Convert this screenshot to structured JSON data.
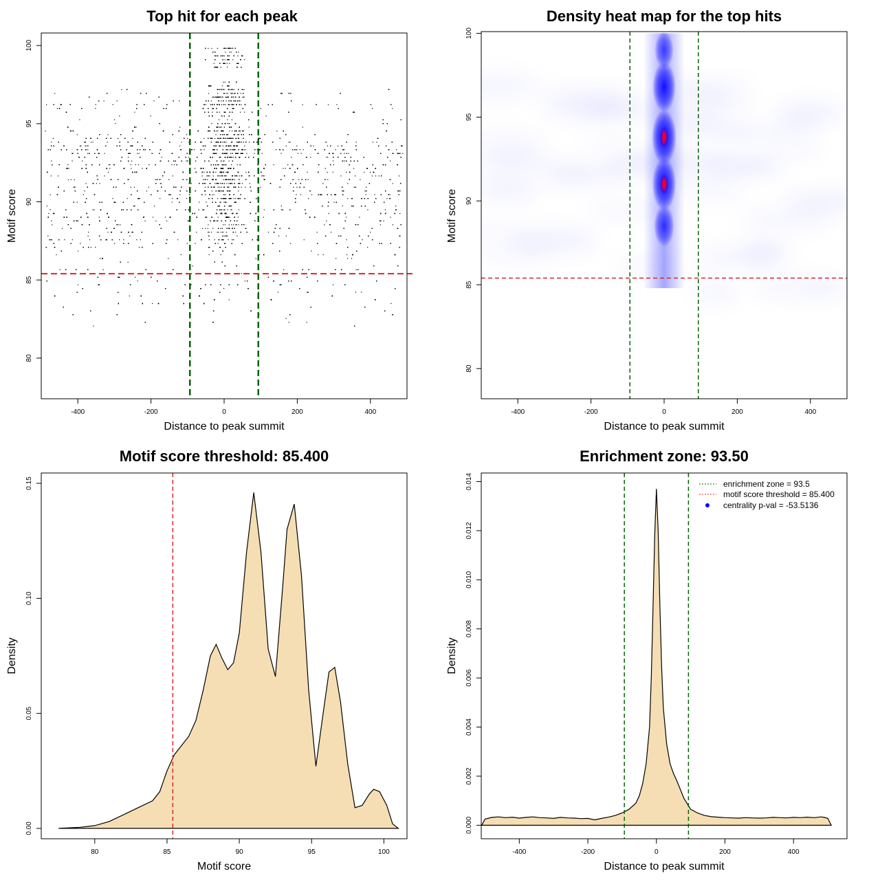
{
  "chart_data": [
    {
      "type": "scatter",
      "title": "Top hit for each peak",
      "xlabel": "Distance to peak summit",
      "ylabel": "Motif score",
      "xlim": [
        -500,
        500
      ],
      "ylim": [
        77.4,
        100.8
      ],
      "xticks": [
        -400,
        -200,
        0,
        200,
        400
      ],
      "yticks": [
        80,
        85,
        90,
        95,
        100
      ],
      "xtick_labels": [
        "-400",
        "-200",
        "0",
        "200",
        "400"
      ],
      "ytick_labels": [
        "80",
        "85",
        "90",
        "95",
        "100"
      ],
      "vlines": [
        -93.5,
        93.5
      ],
      "hline": 85.4,
      "vline_color": "#006400",
      "hline_color": "#d62728",
      "point_color": "#000000",
      "approx_points": 12000,
      "score_range": [
        77.8,
        100
      ]
    },
    {
      "type": "heatmap",
      "title": "Density heat map for the top hits",
      "xlabel": "Distance to peak summit",
      "ylabel": "Motif score",
      "xlim": [
        -500,
        500
      ],
      "ylim": [
        78.2,
        100.1
      ],
      "xticks": [
        -400,
        -200,
        0,
        200,
        400
      ],
      "yticks": [
        80,
        85,
        90,
        95,
        100
      ],
      "xtick_labels": [
        "-400",
        "-200",
        "0",
        "200",
        "400"
      ],
      "ytick_labels": [
        "80",
        "85",
        "90",
        "95",
        "100"
      ],
      "vlines": [
        -93.5,
        93.5
      ],
      "hline": 85.4,
      "hotspots": [
        {
          "x": 0,
          "y": 93.8,
          "intensity": 1.0
        },
        {
          "x": 0,
          "y": 91.0,
          "intensity": 0.92
        },
        {
          "x": 0,
          "y": 96.8,
          "intensity": 0.85
        },
        {
          "x": 0,
          "y": 99.0,
          "intensity": 0.4
        },
        {
          "x": 0,
          "y": 88.5,
          "intensity": 0.55
        }
      ],
      "colors": [
        "#ffffff",
        "#0000ff",
        "#ff0000"
      ]
    },
    {
      "type": "area",
      "title": "Motif score threshold: 85.400",
      "xlabel": "Motif score",
      "ylabel": "Density",
      "xlim": [
        76.3,
        101.6
      ],
      "ylim": [
        -0.0045,
        0.1545
      ],
      "xticks": [
        80,
        85,
        90,
        95,
        100
      ],
      "yticks": [
        0.0,
        0.05,
        0.1,
        0.15
      ],
      "xtick_labels": [
        "80",
        "85",
        "90",
        "95",
        "100"
      ],
      "ytick_labels": [
        "0.00",
        "0.05",
        "0.10",
        "0.15"
      ],
      "vline": 85.4,
      "fill_color": "#f5deb3",
      "x": [
        77.5,
        79.0,
        80.0,
        81.0,
        82.0,
        83.0,
        84.0,
        84.5,
        85.0,
        85.5,
        86.0,
        86.5,
        87.0,
        87.5,
        88.0,
        88.4,
        88.8,
        89.2,
        89.6,
        90.0,
        90.5,
        91.0,
        91.5,
        92.0,
        92.5,
        93.0,
        93.3,
        93.8,
        94.3,
        94.8,
        95.3,
        95.8,
        96.2,
        96.6,
        97.0,
        97.5,
        98.0,
        98.5,
        99.0,
        99.3,
        99.7,
        100.2,
        100.6,
        101.0
      ],
      "values": [
        0.0,
        0.0005,
        0.0012,
        0.003,
        0.006,
        0.009,
        0.012,
        0.016,
        0.025,
        0.032,
        0.036,
        0.04,
        0.047,
        0.06,
        0.075,
        0.08,
        0.074,
        0.069,
        0.072,
        0.085,
        0.12,
        0.146,
        0.12,
        0.078,
        0.066,
        0.105,
        0.13,
        0.141,
        0.11,
        0.06,
        0.027,
        0.05,
        0.068,
        0.07,
        0.055,
        0.028,
        0.009,
        0.01,
        0.015,
        0.017,
        0.016,
        0.01,
        0.002,
        0.0
      ]
    },
    {
      "type": "area",
      "title": "Enrichment zone: 93.50",
      "xlabel": "Distance to peak summit",
      "ylabel": "Density",
      "xlim": [
        -511,
        556
      ],
      "ylim": [
        -0.00055,
        0.01435
      ],
      "xticks": [
        -400,
        -200,
        0,
        200,
        400
      ],
      "yticks": [
        0.0,
        0.002,
        0.004,
        0.006,
        0.008,
        0.01,
        0.012,
        0.014
      ],
      "xtick_labels": [
        "-400",
        "-200",
        "0",
        "200",
        "400"
      ],
      "ytick_labels": [
        "0.000",
        "0.002",
        "0.004",
        "0.006",
        "0.008",
        "0.010",
        "0.012",
        "0.014"
      ],
      "vlines": [
        -93.5,
        93.5
      ],
      "fill_color": "#f5deb3",
      "x": [
        -510,
        -500,
        -480,
        -460,
        -440,
        -420,
        -400,
        -380,
        -360,
        -340,
        -320,
        -300,
        -280,
        -260,
        -240,
        -220,
        -200,
        -180,
        -160,
        -140,
        -120,
        -100,
        -80,
        -60,
        -50,
        -40,
        -30,
        -20,
        -15,
        -10,
        -5,
        0,
        5,
        10,
        15,
        20,
        30,
        40,
        50,
        60,
        80,
        100,
        120,
        140,
        160,
        180,
        200,
        220,
        240,
        260,
        280,
        300,
        320,
        340,
        360,
        380,
        400,
        420,
        440,
        460,
        480,
        490,
        500,
        510
      ],
      "values": [
        0.0,
        0.00025,
        0.00032,
        0.00034,
        0.00031,
        0.00033,
        0.00029,
        0.00032,
        0.00034,
        0.00031,
        0.0003,
        0.00028,
        0.00032,
        0.0003,
        0.00029,
        0.00027,
        0.00028,
        0.00022,
        0.00028,
        0.00033,
        0.0004,
        0.0005,
        0.00065,
        0.0009,
        0.0012,
        0.0017,
        0.0025,
        0.004,
        0.006,
        0.0088,
        0.0118,
        0.0137,
        0.012,
        0.009,
        0.0065,
        0.0048,
        0.0033,
        0.0025,
        0.0021,
        0.0018,
        0.0011,
        0.00065,
        0.0005,
        0.0004,
        0.00035,
        0.00033,
        0.00031,
        0.0003,
        0.00029,
        0.00031,
        0.0003,
        0.00029,
        0.0003,
        0.00032,
        0.00031,
        0.0003,
        0.00032,
        0.00031,
        0.00033,
        0.00031,
        0.00034,
        0.00032,
        0.00028,
        0.0
      ],
      "legend": {
        "entries": [
          {
            "label": "enrichment zone = 93.5",
            "color": "#006400",
            "style": "dotted-line"
          },
          {
            "label": "motif score threshold = 85.400",
            "color": "#d62728",
            "style": "dotted-line"
          },
          {
            "label": "centrality p-val = -53.5136",
            "color": "#0000ff",
            "style": "point"
          }
        ],
        "placement": "top-right"
      }
    }
  ]
}
